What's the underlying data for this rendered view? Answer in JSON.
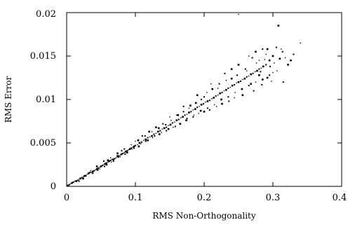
{
  "chart_data": {
    "type": "scatter",
    "xlabel": "RMS Non-Orthogonality",
    "ylabel": "RMS Error",
    "xlim": [
      0,
      0.4
    ],
    "ylim": [
      0,
      0.02
    ],
    "xticks": [
      {
        "value": 0,
        "label": "0"
      },
      {
        "value": 0.1,
        "label": "0.1"
      },
      {
        "value": 0.2,
        "label": "0.2"
      },
      {
        "value": 0.3,
        "label": "0.3"
      },
      {
        "value": 0.4,
        "label": "0.4"
      }
    ],
    "yticks": [
      {
        "value": 0,
        "label": "0"
      },
      {
        "value": 0.005,
        "label": "0.005"
      },
      {
        "value": 0.01,
        "label": "0.01"
      },
      {
        "value": 0.015,
        "label": "0.015"
      },
      {
        "value": 0.02,
        "label": "0.02"
      }
    ],
    "grid": false,
    "legend": "none",
    "marker_color": "#000000",
    "points": [
      [
        0.002,
        0.0001
      ],
      [
        0.004,
        0.0002
      ],
      [
        0.006,
        0.0003
      ],
      [
        0.008,
        0.0004
      ],
      [
        0.01,
        0.0005
      ],
      [
        0.012,
        0.0006
      ],
      [
        0.014,
        0.0006
      ],
      [
        0.016,
        0.0007
      ],
      [
        0.018,
        0.0008
      ],
      [
        0.02,
        0.0009
      ],
      [
        0.022,
        0.001
      ],
      [
        0.024,
        0.0011
      ],
      [
        0.026,
        0.0012
      ],
      [
        0.028,
        0.0012
      ],
      [
        0.03,
        0.0014
      ],
      [
        0.032,
        0.0015
      ],
      [
        0.034,
        0.0016
      ],
      [
        0.036,
        0.0016
      ],
      [
        0.038,
        0.0017
      ],
      [
        0.04,
        0.0018
      ],
      [
        0.042,
        0.0019
      ],
      [
        0.044,
        0.002
      ],
      [
        0.046,
        0.0021
      ],
      [
        0.048,
        0.0022
      ],
      [
        0.05,
        0.0023
      ],
      [
        0.052,
        0.0024
      ],
      [
        0.054,
        0.0025
      ],
      [
        0.056,
        0.0026
      ],
      [
        0.058,
        0.0027
      ],
      [
        0.06,
        0.0028
      ],
      [
        0.062,
        0.0029
      ],
      [
        0.064,
        0.003
      ],
      [
        0.066,
        0.0031
      ],
      [
        0.068,
        0.0031
      ],
      [
        0.07,
        0.0032
      ],
      [
        0.072,
        0.0033
      ],
      [
        0.074,
        0.0035
      ],
      [
        0.076,
        0.0035
      ],
      [
        0.078,
        0.0036
      ],
      [
        0.08,
        0.0037
      ],
      [
        0.082,
        0.0038
      ],
      [
        0.084,
        0.0039
      ],
      [
        0.086,
        0.004
      ],
      [
        0.088,
        0.0041
      ],
      [
        0.09,
        0.0042
      ],
      [
        0.092,
        0.0043
      ],
      [
        0.094,
        0.0044
      ],
      [
        0.096,
        0.0045
      ],
      [
        0.098,
        0.0046
      ],
      [
        0.1,
        0.0047
      ],
      [
        0.103,
        0.0048
      ],
      [
        0.106,
        0.005
      ],
      [
        0.109,
        0.0051
      ],
      [
        0.112,
        0.0053
      ],
      [
        0.115,
        0.0054
      ],
      [
        0.118,
        0.0056
      ],
      [
        0.121,
        0.0057
      ],
      [
        0.124,
        0.0058
      ],
      [
        0.127,
        0.006
      ],
      [
        0.13,
        0.0061
      ],
      [
        0.133,
        0.0063
      ],
      [
        0.136,
        0.0064
      ],
      [
        0.139,
        0.0066
      ],
      [
        0.142,
        0.0067
      ],
      [
        0.145,
        0.0068
      ],
      [
        0.148,
        0.007
      ],
      [
        0.151,
        0.0071
      ],
      [
        0.154,
        0.0073
      ],
      [
        0.157,
        0.0074
      ],
      [
        0.16,
        0.0076
      ],
      [
        0.163,
        0.0077
      ],
      [
        0.166,
        0.0079
      ],
      [
        0.169,
        0.008
      ],
      [
        0.172,
        0.0082
      ],
      [
        0.175,
        0.0083
      ],
      [
        0.178,
        0.0085
      ],
      [
        0.181,
        0.0086
      ],
      [
        0.184,
        0.0088
      ],
      [
        0.187,
        0.0089
      ],
      [
        0.19,
        0.0091
      ],
      [
        0.193,
        0.0092
      ],
      [
        0.196,
        0.0094
      ],
      [
        0.199,
        0.0095
      ],
      [
        0.202,
        0.0097
      ],
      [
        0.205,
        0.0098
      ],
      [
        0.208,
        0.0099
      ],
      [
        0.211,
        0.0101
      ],
      [
        0.214,
        0.0102
      ],
      [
        0.217,
        0.0104
      ],
      [
        0.22,
        0.0105
      ],
      [
        0.223,
        0.0107
      ],
      [
        0.226,
        0.0108
      ],
      [
        0.229,
        0.011
      ],
      [
        0.232,
        0.0111
      ],
      [
        0.235,
        0.0113
      ],
      [
        0.238,
        0.0114
      ],
      [
        0.241,
        0.0116
      ],
      [
        0.244,
        0.0117
      ],
      [
        0.247,
        0.0119
      ],
      [
        0.25,
        0.012
      ],
      [
        0.253,
        0.0121
      ],
      [
        0.256,
        0.0123
      ],
      [
        0.259,
        0.0124
      ],
      [
        0.262,
        0.0126
      ],
      [
        0.265,
        0.0127
      ],
      [
        0.268,
        0.0129
      ],
      [
        0.271,
        0.013
      ],
      [
        0.274,
        0.0132
      ],
      [
        0.277,
        0.0133
      ],
      [
        0.28,
        0.0135
      ],
      [
        0.283,
        0.0136
      ],
      [
        0.286,
        0.0138
      ],
      [
        0.29,
        0.014
      ],
      [
        0.035,
        0.0018
      ],
      [
        0.045,
        0.0019
      ],
      [
        0.055,
        0.0023
      ],
      [
        0.065,
        0.0028
      ],
      [
        0.075,
        0.0034
      ],
      [
        0.085,
        0.0037
      ],
      [
        0.095,
        0.0043
      ],
      [
        0.105,
        0.0046
      ],
      [
        0.115,
        0.0052
      ],
      [
        0.125,
        0.0056
      ],
      [
        0.135,
        0.006
      ],
      [
        0.145,
        0.0064
      ],
      [
        0.155,
        0.0068
      ],
      [
        0.165,
        0.0072
      ],
      [
        0.175,
        0.0078
      ],
      [
        0.185,
        0.0082
      ],
      [
        0.195,
        0.0087
      ],
      [
        0.205,
        0.009
      ],
      [
        0.215,
        0.0094
      ],
      [
        0.225,
        0.01
      ],
      [
        0.235,
        0.0103
      ],
      [
        0.245,
        0.0108
      ],
      [
        0.255,
        0.0112
      ],
      [
        0.265,
        0.0116
      ],
      [
        0.275,
        0.012
      ],
      [
        0.285,
        0.0123
      ],
      [
        0.295,
        0.0128
      ],
      [
        0.3,
        0.0131
      ],
      [
        0.06,
        0.003
      ],
      [
        0.08,
        0.0041
      ],
      [
        0.1,
        0.0052
      ],
      [
        0.12,
        0.0063
      ],
      [
        0.14,
        0.0072
      ],
      [
        0.16,
        0.0082
      ],
      [
        0.18,
        0.0093
      ],
      [
        0.2,
        0.0103
      ],
      [
        0.22,
        0.0113
      ],
      [
        0.24,
        0.0124
      ],
      [
        0.26,
        0.0135
      ],
      [
        0.28,
        0.0145
      ],
      [
        0.3,
        0.015
      ],
      [
        0.27,
        0.0148
      ],
      [
        0.29,
        0.0152
      ],
      [
        0.25,
        0.014
      ],
      [
        0.23,
        0.013
      ],
      [
        0.21,
        0.0118
      ],
      [
        0.19,
        0.0105
      ],
      [
        0.17,
        0.0092
      ],
      [
        0.15,
        0.008
      ],
      [
        0.13,
        0.0068
      ],
      [
        0.11,
        0.0058
      ],
      [
        0.262,
        0.0133
      ],
      [
        0.268,
        0.0118
      ],
      [
        0.272,
        0.011
      ],
      [
        0.276,
        0.0142
      ],
      [
        0.28,
        0.0128
      ],
      [
        0.284,
        0.0117
      ],
      [
        0.288,
        0.0146
      ],
      [
        0.292,
        0.0125
      ],
      [
        0.296,
        0.0138
      ],
      [
        0.298,
        0.0121
      ],
      [
        0.256,
        0.0105
      ],
      [
        0.248,
        0.0128
      ],
      [
        0.244,
        0.0102
      ],
      [
        0.24,
        0.0135
      ],
      [
        0.236,
        0.0098
      ],
      [
        0.232,
        0.0122
      ],
      [
        0.226,
        0.0095
      ],
      [
        0.222,
        0.0118
      ],
      [
        0.218,
        0.0092
      ],
      [
        0.212,
        0.0112
      ],
      [
        0.208,
        0.0088
      ],
      [
        0.204,
        0.0108
      ],
      [
        0.2,
        0.0086
      ],
      [
        0.196,
        0.01
      ],
      [
        0.192,
        0.0084
      ],
      [
        0.188,
        0.0096
      ],
      [
        0.184,
        0.008
      ],
      [
        0.178,
        0.009
      ],
      [
        0.174,
        0.0076
      ],
      [
        0.17,
        0.0086
      ],
      [
        0.166,
        0.0072
      ],
      [
        0.162,
        0.0082
      ],
      [
        0.158,
        0.0069
      ],
      [
        0.152,
        0.0076
      ],
      [
        0.148,
        0.0066
      ],
      [
        0.144,
        0.0071
      ],
      [
        0.138,
        0.0062
      ],
      [
        0.134,
        0.0067
      ],
      [
        0.128,
        0.0058
      ],
      [
        0.124,
        0.0063
      ],
      [
        0.118,
        0.0053
      ],
      [
        0.114,
        0.0058
      ],
      [
        0.108,
        0.0049
      ],
      [
        0.104,
        0.0053
      ],
      [
        0.098,
        0.0044
      ],
      [
        0.094,
        0.0048
      ],
      [
        0.088,
        0.0039
      ],
      [
        0.084,
        0.0043
      ],
      [
        0.078,
        0.0034
      ],
      [
        0.074,
        0.0038
      ],
      [
        0.068,
        0.0029
      ],
      [
        0.064,
        0.0033
      ],
      [
        0.058,
        0.0025
      ],
      [
        0.054,
        0.0029
      ],
      [
        0.048,
        0.002
      ],
      [
        0.044,
        0.0023
      ],
      [
        0.038,
        0.0015
      ],
      [
        0.028,
        0.0013
      ],
      [
        0.024,
        0.0009
      ],
      [
        0.018,
        0.0006
      ],
      [
        0.306,
        0.0133
      ],
      [
        0.31,
        0.0147
      ],
      [
        0.314,
        0.0155
      ],
      [
        0.318,
        0.0148
      ],
      [
        0.322,
        0.014
      ],
      [
        0.305,
        0.016
      ],
      [
        0.312,
        0.0158
      ],
      [
        0.326,
        0.0145
      ],
      [
        0.33,
        0.0152
      ],
      [
        0.302,
        0.0142
      ],
      [
        0.275,
        0.0155
      ],
      [
        0.285,
        0.0158
      ],
      [
        0.265,
        0.015
      ],
      [
        0.295,
        0.0145
      ],
      [
        0.282,
        0.0132
      ],
      [
        0.25,
        0.0198
      ],
      [
        0.308,
        0.0185
      ],
      [
        0.315,
        0.012
      ],
      [
        0.34,
        0.0165
      ],
      [
        0.292,
        0.0158
      ]
    ]
  }
}
